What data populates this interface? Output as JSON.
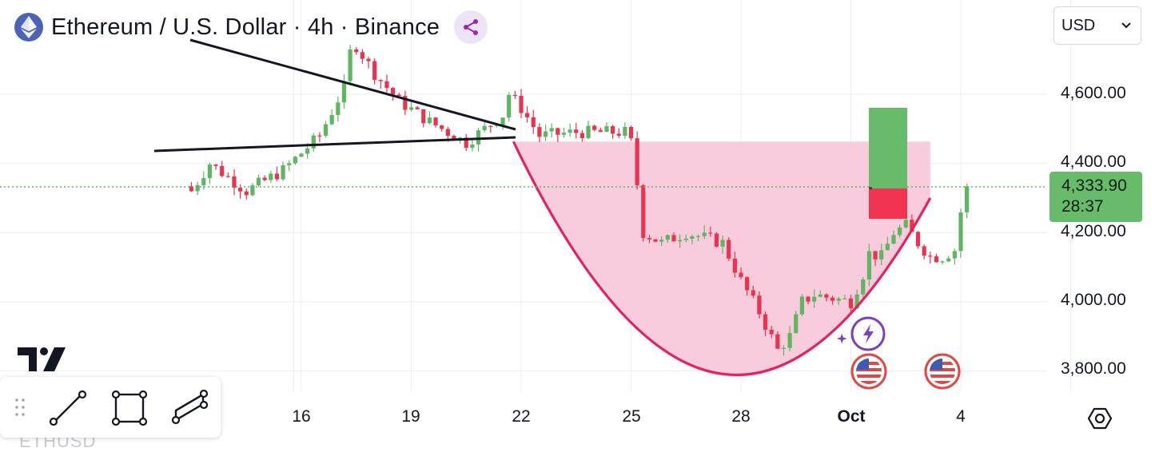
{
  "header": {
    "title": "Ethereum / U.S. Dollar · 4h · Binance",
    "logo_icon": "ethereum-logo-icon",
    "share_icon": "share-icon"
  },
  "currency_selector": {
    "value": "USD",
    "icon": "chevron-down-icon"
  },
  "last_price": {
    "value": "4,333.90",
    "countdown": "28:37"
  },
  "colors": {
    "up": "#5fb562",
    "down": "#e9334f",
    "pattern_fill": "#f8c9db",
    "cup_line": "#e0245e",
    "tag_green": "#67bb6a",
    "accent_purple": "#9c27b0"
  },
  "toolbar": {
    "items": [
      {
        "name": "drag-handle-icon"
      },
      {
        "name": "trend-line-tool-icon"
      },
      {
        "name": "rectangle-tool-icon"
      },
      {
        "name": "parallel-channel-tool-icon"
      }
    ]
  },
  "watermark": "ETHUSD",
  "settings_icon": "settings-icon",
  "chart_data": {
    "type": "candlestick",
    "title": "Ethereum / U.S. Dollar · 4h · Binance",
    "xlabel": "",
    "ylabel": "",
    "x_ticks": [
      "16",
      "19",
      "22",
      "25",
      "28",
      "Oct",
      "4"
    ],
    "y_ticks": [
      "4,600.00",
      "4,400.00",
      "4,200.00",
      "4,000.00",
      "3,800.00"
    ],
    "ylim": [
      3780,
      4770
    ],
    "grid": true,
    "last_price": 4333.9,
    "keypoints": [
      {
        "t": "Sep 13 00:00",
        "close": 4320
      },
      {
        "t": "Sep 13 12:00",
        "close": 4400
      },
      {
        "t": "Sep 14 12:00",
        "close": 4320
      },
      {
        "t": "Sep 15 12:00",
        "close": 4380
      },
      {
        "t": "Sep 16 12:00",
        "close": 4480
      },
      {
        "t": "Sep 17 04:00",
        "close": 4620
      },
      {
        "t": "Sep 17 08:00",
        "close": 4720
      },
      {
        "t": "Sep 17 12:00",
        "close": 4740
      },
      {
        "t": "Sep 18 00:00",
        "close": 4660
      },
      {
        "t": "Sep 18 16:00",
        "close": 4580
      },
      {
        "t": "Sep 19 12:00",
        "close": 4520
      },
      {
        "t": "Sep 20 12:00",
        "close": 4460
      },
      {
        "t": "Sep 21 12:00",
        "close": 4540
      },
      {
        "t": "Sep 21 16:00",
        "close": 4600
      },
      {
        "t": "Sep 22 00:00",
        "close": 4560
      },
      {
        "t": "Sep 22 12:00",
        "close": 4480
      },
      {
        "t": "Sep 23 12:00",
        "close": 4490
      },
      {
        "t": "Sep 24 20:00",
        "close": 4490
      },
      {
        "t": "Sep 25 00:00",
        "close": 4460
      },
      {
        "t": "Sep 25 04:00",
        "close": 4340
      },
      {
        "t": "Sep 25 08:00",
        "close": 4200
      },
      {
        "t": "Sep 25 20:00",
        "close": 4170
      },
      {
        "t": "Sep 26 12:00",
        "close": 4200
      },
      {
        "t": "Sep 27 12:00",
        "close": 4170
      },
      {
        "t": "Sep 28 00:00",
        "close": 4060
      },
      {
        "t": "Sep 28 12:00",
        "close": 3970
      },
      {
        "t": "Sep 29 00:00",
        "close": 3860
      },
      {
        "t": "Sep 29 08:00",
        "close": 3900
      },
      {
        "t": "Sep 29 16:00",
        "close": 4000
      },
      {
        "t": "Sep 30 00:00",
        "close": 4020
      },
      {
        "t": "Sep 30 12:00",
        "close": 4010
      },
      {
        "t": "Oct 01 00:00",
        "close": 4000
      },
      {
        "t": "Oct 01 08:00",
        "close": 4080
      },
      {
        "t": "Oct 01 12:00",
        "close": 4140
      },
      {
        "t": "Oct 01 20:00",
        "close": 4130
      },
      {
        "t": "Oct 02 04:00",
        "close": 4200
      },
      {
        "t": "Oct 02 12:00",
        "close": 4220
      },
      {
        "t": "Oct 02 20:00",
        "close": 4170
      },
      {
        "t": "Oct 03 04:00",
        "close": 4130
      },
      {
        "t": "Oct 03 12:00",
        "close": 4130
      },
      {
        "t": "Oct 03 20:00",
        "close": 4150
      },
      {
        "t": "Oct 04 00:00",
        "close": 4260
      },
      {
        "t": "Oct 04 04:00",
        "close": 4333.9
      }
    ]
  }
}
